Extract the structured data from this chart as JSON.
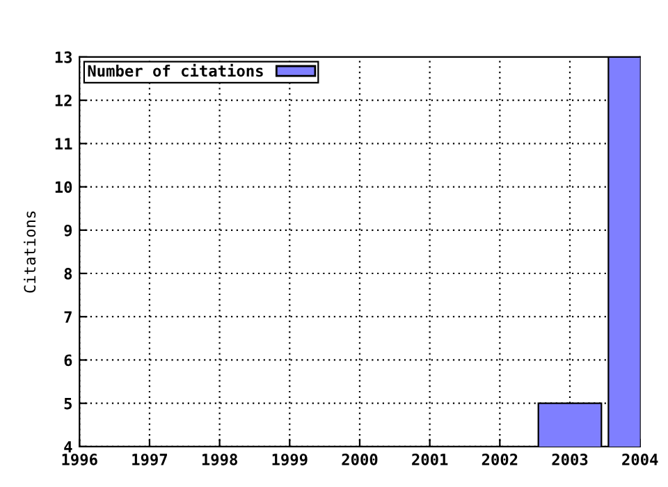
{
  "chart_data": {
    "type": "bar",
    "ylabel": "Citations",
    "x": [
      2003,
      2004
    ],
    "series": [
      {
        "name": "Number of citations",
        "color": "#7f7fff",
        "values": [
          5,
          13
        ]
      }
    ],
    "xlim": [
      1996,
      2004
    ],
    "xticks": [
      1996,
      1997,
      1998,
      1999,
      2000,
      2001,
      2002,
      2003,
      2004
    ],
    "ylim": [
      4,
      13
    ],
    "yticks": [
      4,
      5,
      6,
      7,
      8,
      9,
      10,
      11,
      12,
      13
    ],
    "grid": true,
    "legend": "top left"
  }
}
